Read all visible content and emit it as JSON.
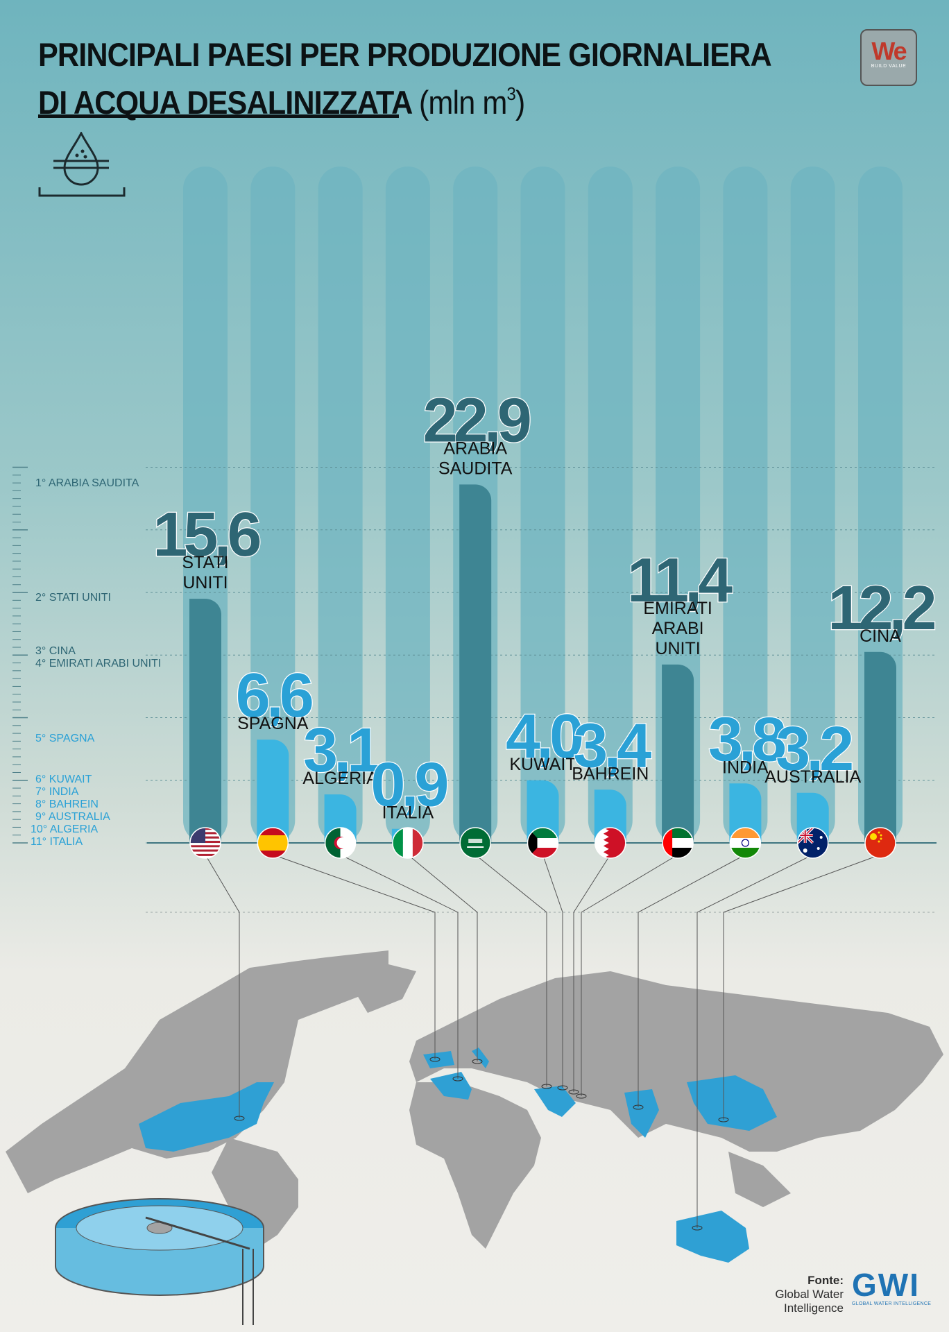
{
  "header": {
    "title_line1": "PRINCIPALI PAESI PER PRODUZIONE GIORNALIERA",
    "title_line2": "DI ACQUA DESALINIZZATA",
    "title_unit": "(mln m",
    "title_unit_sup": "3",
    "title_unit_close": ")"
  },
  "logo": {
    "text": "We",
    "subtext": "BUILD VALUE"
  },
  "rank_list": [
    {
      "label": "1° ARABIA SAUDITA",
      "color": "#2e6674"
    },
    {
      "label": "2° STATI UNITI",
      "color": "#2e6674"
    },
    {
      "label": "3° CINA",
      "color": "#2e6674"
    },
    {
      "label": "4° EMIRATI ARABI UNITI",
      "color": "#2e6674"
    },
    {
      "label": "5° SPAGNA",
      "color": "#2aa1d6"
    },
    {
      "label": "6° KUWAIT",
      "color": "#2aa1d6"
    },
    {
      "label": "7° INDIA",
      "color": "#2aa1d6"
    },
    {
      "label": "8° BAHREIN",
      "color": "#2aa1d6"
    },
    {
      "label": "9° AUSTRALIA",
      "color": "#2aa1d6"
    },
    {
      "label": "10° ALGERIA",
      "color": "#2aa1d6"
    },
    {
      "label": "11° ITALIA",
      "color": "#2aa1d6"
    }
  ],
  "colors": {
    "dark_bar": "#3e8593",
    "dark_text": "#2e6674",
    "light_bar": "#3bb5e1",
    "light_text": "#2aa1d6",
    "bg_column": "#6fb4c0",
    "map_land": "#a3a3a3",
    "map_highlight": "#2fa0d4"
  },
  "chart_data": {
    "type": "bar",
    "unit": "mln m³",
    "categories": [
      "STATI UNITI",
      "SPAGNA",
      "ALGERIA",
      "ITALIA",
      "ARABIA SAUDITA",
      "KUWAIT",
      "BAHREIN",
      "EMIRATI ARABI UNITI",
      "INDIA",
      "AUSTRALIA",
      "CINA"
    ],
    "series": [
      {
        "values": [
          15.6,
          6.6,
          3.1,
          0.9,
          22.9,
          4.0,
          3.4,
          11.4,
          3.8,
          3.2,
          12.2
        ]
      }
    ],
    "value_labels": [
      "15,6",
      "6,6",
      "3,1",
      "0,9",
      "22,9",
      "4,0",
      "3,4",
      "11,4",
      "3,8",
      "3,2",
      "12,2"
    ],
    "bar_labels": [
      [
        "STATI",
        "UNITI"
      ],
      [
        "SPAGNA"
      ],
      [
        "ALGERIA"
      ],
      [
        "ITALIA"
      ],
      [
        "ARABIA",
        "SAUDITA"
      ],
      [
        "KUWAIT"
      ],
      [
        "BAHREIN"
      ],
      [
        "EMIRATI",
        "ARABI",
        "UNITI"
      ],
      [
        "INDIA"
      ],
      [
        "AUSTRALIA"
      ],
      [
        "CINA"
      ]
    ],
    "highlight": [
      "dark",
      "light",
      "light",
      "light",
      "dark",
      "light",
      "light",
      "dark",
      "light",
      "light",
      "dark"
    ],
    "flags": [
      "usa-flag",
      "spain-flag",
      "algeria-flag",
      "italy-flag",
      "saudi-arabia-flag",
      "kuwait-flag",
      "bahrain-flag",
      "uae-flag",
      "india-flag",
      "australia-flag",
      "china-flag"
    ],
    "ylim": [
      0,
      25
    ],
    "grid": true,
    "title": "",
    "xlabel": "",
    "ylabel": ""
  },
  "source": {
    "label": "Fonte:",
    "line1": "Global Water",
    "line2": "Intelligence"
  },
  "gwi_logo": {
    "letters": "GWI",
    "subtext": "GLOBAL WATER INTELLIGENCE"
  }
}
